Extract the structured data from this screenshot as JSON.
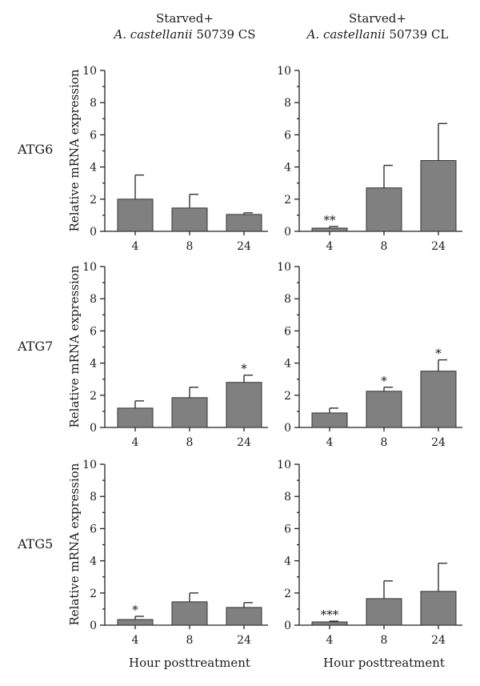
{
  "figure": {
    "column_titles": [
      {
        "line1": "Starved+",
        "species": "A. castellanii",
        "strain": " 50739 CS"
      },
      {
        "line1": "Starved+",
        "species": "A. castellanii",
        "strain": " 50739 CL"
      }
    ],
    "row_labels": [
      "ATG6",
      "ATG7",
      "ATG5"
    ],
    "ylabel": "Relative mRNA expression",
    "xlabel": "Hour posttreatment",
    "bar_color": "#808080"
  },
  "chart_data": [
    {
      "type": "bar",
      "gene": "ATG6",
      "condition": "Starved+ A. castellanii 50739 CS",
      "categories": [
        "4",
        "8",
        "24"
      ],
      "values": [
        2.0,
        1.45,
        1.05
      ],
      "errors": [
        1.5,
        0.85,
        0.1
      ],
      "significance": [
        "",
        "",
        ""
      ],
      "ylim": [
        0,
        10
      ],
      "yticks": [
        0,
        2,
        4,
        6,
        8,
        10
      ]
    },
    {
      "type": "bar",
      "gene": "ATG6",
      "condition": "Starved+ A. castellanii 50739 CL",
      "categories": [
        "4",
        "8",
        "24"
      ],
      "values": [
        0.2,
        2.7,
        4.4
      ],
      "errors": [
        0.1,
        1.4,
        2.3
      ],
      "significance": [
        "**",
        "",
        ""
      ],
      "ylim": [
        0,
        10
      ],
      "yticks": [
        0,
        2,
        4,
        6,
        8,
        10
      ]
    },
    {
      "type": "bar",
      "gene": "ATG7",
      "condition": "Starved+ A. castellanii 50739 CS",
      "categories": [
        "4",
        "8",
        "24"
      ],
      "values": [
        1.2,
        1.85,
        2.8
      ],
      "errors": [
        0.45,
        0.65,
        0.45
      ],
      "significance": [
        "",
        "",
        "*"
      ],
      "ylim": [
        0,
        10
      ],
      "yticks": [
        0,
        2,
        4,
        6,
        8,
        10
      ]
    },
    {
      "type": "bar",
      "gene": "ATG7",
      "condition": "Starved+ A. castellanii 50739 CL",
      "categories": [
        "4",
        "8",
        "24"
      ],
      "values": [
        0.9,
        2.25,
        3.5
      ],
      "errors": [
        0.3,
        0.25,
        0.7
      ],
      "significance": [
        "",
        "*",
        "*"
      ],
      "ylim": [
        0,
        10
      ],
      "yticks": [
        0,
        2,
        4,
        6,
        8,
        10
      ]
    },
    {
      "type": "bar",
      "gene": "ATG5",
      "condition": "Starved+ A. castellanii 50739 CS",
      "categories": [
        "4",
        "8",
        "24"
      ],
      "values": [
        0.35,
        1.45,
        1.1
      ],
      "errors": [
        0.2,
        0.55,
        0.3
      ],
      "significance": [
        "*",
        "",
        ""
      ],
      "ylim": [
        0,
        10
      ],
      "yticks": [
        0,
        2,
        4,
        6,
        8,
        10
      ]
    },
    {
      "type": "bar",
      "gene": "ATG5",
      "condition": "Starved+ A. castellanii 50739 CL",
      "categories": [
        "4",
        "8",
        "24"
      ],
      "values": [
        0.2,
        1.65,
        2.1
      ],
      "errors": [
        0.05,
        1.1,
        1.75
      ],
      "significance": [
        "***",
        "",
        ""
      ],
      "ylim": [
        0,
        10
      ],
      "yticks": [
        0,
        2,
        4,
        6,
        8,
        10
      ]
    }
  ]
}
